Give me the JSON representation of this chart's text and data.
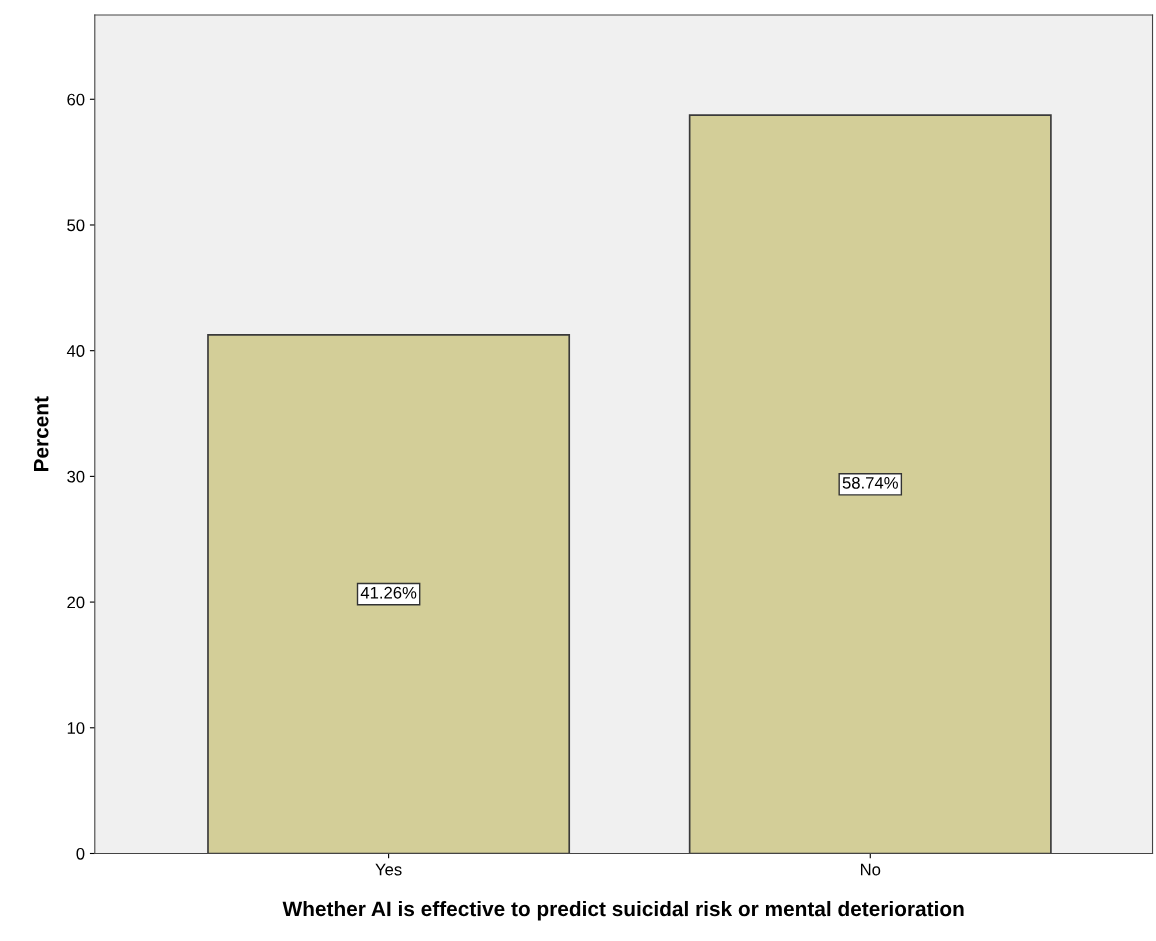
{
  "chart_data": {
    "type": "bar",
    "xlabel": "Whether AI is effective to predict suicidal risk or mental deterioration",
    "ylabel": "Percent",
    "categories": [
      "Yes",
      "No"
    ],
    "values": [
      41.26,
      58.74
    ],
    "value_labels": [
      "41.26%",
      "58.74%"
    ],
    "color": "#d3ce98",
    "ylim": [
      0,
      66.7
    ],
    "yticks": [
      0,
      10,
      20,
      30,
      40,
      50,
      60
    ],
    "grid": false,
    "legend": false
  }
}
